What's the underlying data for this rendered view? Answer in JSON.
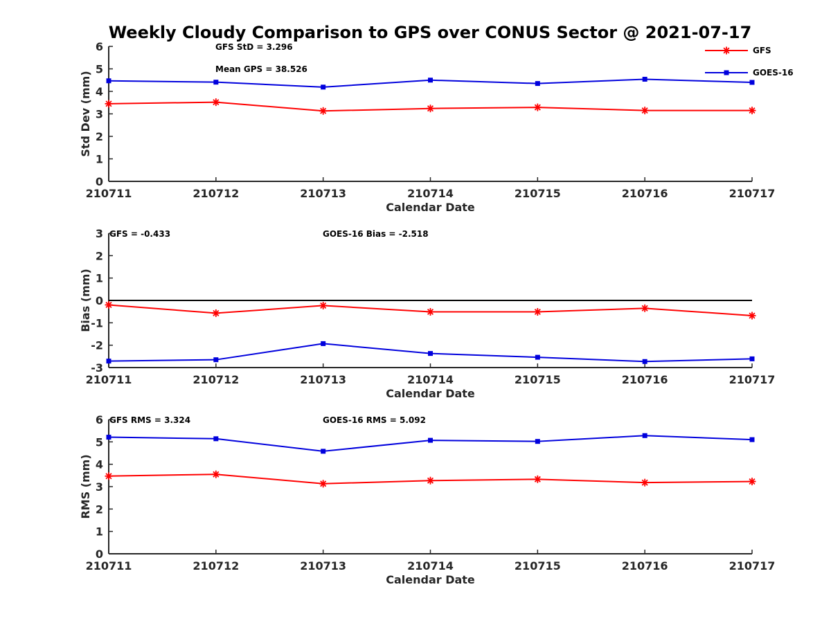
{
  "chart_data": {
    "title": "Weekly Cloudy Comparison to GPS over CONUS Sector @ 2021-07-17",
    "categories": [
      "210711",
      "210712",
      "210713",
      "210714",
      "210715",
      "210716",
      "210717"
    ],
    "colors": {
      "GFS": "#ff0000",
      "GOES-16": "#0000dd",
      "zero_line": "#000000"
    },
    "legend": {
      "placement": "top-right",
      "entries": [
        {
          "name": "GFS",
          "marker": "star",
          "color": "#ff0000"
        },
        {
          "name": "GOES-16",
          "marker": "square",
          "color": "#0000dd"
        }
      ]
    },
    "panels": [
      {
        "type": "line",
        "xlabel": "Calendar Date",
        "ylabel": "Std Dev (mm)",
        "ylim": [
          0,
          6
        ],
        "yticks": [
          "0",
          "1",
          "2",
          "3",
          "4",
          "5",
          "6"
        ],
        "grid": false,
        "annotations": [
          "GFS StD = 3.296",
          "Mean GPS = 38.526"
        ],
        "series": [
          {
            "name": "GFS",
            "marker": "star",
            "values": [
              3.45,
              3.52,
              3.13,
              3.24,
              3.29,
              3.15,
              3.15
            ]
          },
          {
            "name": "GOES-16",
            "marker": "square",
            "values": [
              4.47,
              4.41,
              4.19,
              4.5,
              4.35,
              4.54,
              4.4
            ]
          }
        ]
      },
      {
        "type": "line",
        "xlabel": "Calendar Date",
        "ylabel": "Bias (mm)",
        "ylim": [
          -3,
          3
        ],
        "yticks": [
          "-3",
          "-2",
          "-1",
          "0",
          "1",
          "2",
          "3"
        ],
        "grid": false,
        "zero_line": true,
        "annotations": [
          "GFS = -0.433",
          "GOES-16 Bias  = -2.518"
        ],
        "series": [
          {
            "name": "GFS",
            "marker": "star",
            "values": [
              -0.2,
              -0.57,
              -0.23,
              -0.51,
              -0.51,
              -0.35,
              -0.68
            ]
          },
          {
            "name": "GOES-16",
            "marker": "square",
            "values": [
              -2.71,
              -2.65,
              -1.93,
              -2.37,
              -2.54,
              -2.73,
              -2.61
            ]
          }
        ]
      },
      {
        "type": "line",
        "xlabel": "Calendar Date",
        "ylabel": "RMS (mm)",
        "ylim": [
          0,
          6
        ],
        "yticks": [
          "0",
          "1",
          "2",
          "3",
          "4",
          "5",
          "6"
        ],
        "grid": false,
        "annotations": [
          "GFS RMS = 3.324",
          "GOES-16 RMS = 5.092"
        ],
        "series": [
          {
            "name": "GFS",
            "marker": "star",
            "values": [
              3.47,
              3.55,
              3.13,
              3.27,
              3.33,
              3.18,
              3.23
            ]
          },
          {
            "name": "GOES-16",
            "marker": "square",
            "values": [
              5.21,
              5.14,
              4.58,
              5.07,
              5.02,
              5.28,
              5.1
            ]
          }
        ]
      }
    ]
  }
}
